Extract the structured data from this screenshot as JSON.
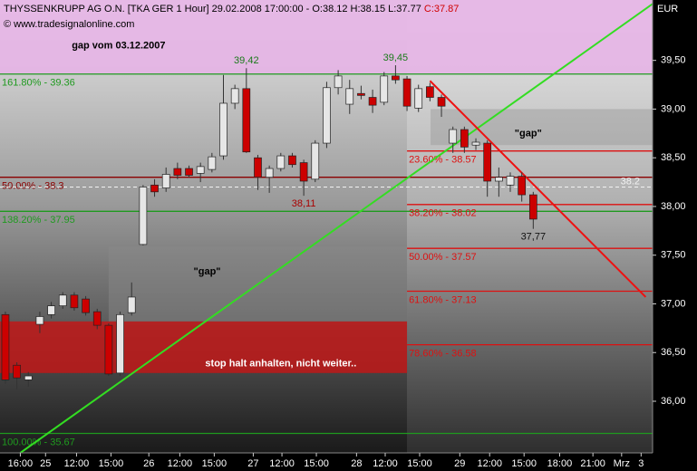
{
  "chart_data": {
    "type": "candlestick",
    "title": "THYSSENKRUPP AG O.N. [TKA GER  1 Hour] 29.02.2008 17:00:00 - O:38.12 H:38.15 L:37.77",
    "close_label": "C:37.87",
    "subtitle": "© www.tradesignalonline.com",
    "y_axis_label": "EUR",
    "ylim": [
      35.47,
      40.12
    ],
    "yticks": [
      {
        "value": 39.5,
        "label": "39,50"
      },
      {
        "value": 39.0,
        "label": "39,00"
      },
      {
        "value": 38.5,
        "label": "38,50"
      },
      {
        "value": 38.0,
        "label": "38,00"
      },
      {
        "value": 37.5,
        "label": "37,50"
      },
      {
        "value": 37.0,
        "label": "37,00"
      },
      {
        "value": 36.5,
        "label": "36,50"
      },
      {
        "value": 36.0,
        "label": "36,00"
      }
    ],
    "xlim": [
      -0.47,
      56.4
    ],
    "xticks": [
      {
        "value": 1.3,
        "label": "16:00"
      },
      {
        "value": 3.5,
        "label": "25"
      },
      {
        "value": 6.2,
        "label": "12:00"
      },
      {
        "value": 9.2,
        "label": "15:00"
      },
      {
        "value": 12.5,
        "label": "26"
      },
      {
        "value": 15.2,
        "label": "12:00"
      },
      {
        "value": 18.2,
        "label": "15:00"
      },
      {
        "value": 21.6,
        "label": "27"
      },
      {
        "value": 24.1,
        "label": "12:00"
      },
      {
        "value": 27.1,
        "label": "15:00"
      },
      {
        "value": 30.6,
        "label": "28"
      },
      {
        "value": 33.1,
        "label": "12:00"
      },
      {
        "value": 36.1,
        "label": "15:00"
      },
      {
        "value": 39.6,
        "label": "29"
      },
      {
        "value": 42.2,
        "label": "12:00"
      },
      {
        "value": 45.2,
        "label": "15:00"
      },
      {
        "value": 48.3,
        "label": "18:00"
      },
      {
        "value": 51.2,
        "label": "21:00"
      },
      {
        "value": 53.7,
        "label": "Mrz"
      },
      {
        "value": 55.4,
        "label": "3"
      }
    ],
    "candles": {
      "up_color": "#e6e6e6",
      "down_color": "#cc0000",
      "open": [
        36.89,
        36.37,
        36.22,
        36.79,
        36.89,
        36.98,
        37.09,
        37.05,
        36.92,
        36.78,
        36.29,
        36.91,
        37.61,
        38.22,
        38.19,
        38.39,
        38.39,
        38.34,
        38.38,
        38.52,
        39.06,
        39.21,
        38.5,
        38.3,
        38.39,
        38.52,
        38.45,
        38.28,
        38.65,
        39.22,
        39.05,
        39.16,
        39.12,
        39.07,
        39.34,
        39.31,
        39.01,
        39.23,
        39.12,
        38.65,
        38.79,
        38.63,
        38.65,
        38.26,
        38.22,
        38.31,
        38.12
      ],
      "high": [
        36.92,
        36.4,
        36.3,
        36.92,
        37.02,
        37.12,
        37.12,
        37.08,
        36.95,
        36.8,
        36.92,
        37.22,
        38.22,
        38.28,
        38.4,
        38.45,
        38.42,
        38.45,
        38.55,
        39.35,
        39.25,
        39.42,
        38.53,
        38.42,
        38.55,
        38.55,
        38.48,
        38.68,
        39.28,
        39.4,
        39.3,
        39.24,
        39.2,
        39.38,
        39.45,
        39.34,
        39.25,
        39.27,
        39.15,
        38.82,
        38.82,
        38.7,
        38.68,
        38.4,
        38.35,
        38.35,
        38.15
      ],
      "low": [
        36.18,
        36.12,
        36.15,
        36.7,
        36.85,
        36.95,
        36.93,
        36.88,
        36.74,
        36.26,
        36.26,
        36.88,
        37.6,
        38.1,
        38.15,
        38.28,
        38.3,
        38.25,
        38.35,
        38.48,
        39.0,
        38.55,
        38.17,
        38.14,
        38.36,
        38.4,
        38.11,
        38.25,
        38.6,
        39.15,
        38.95,
        39.1,
        38.96,
        39.04,
        39.26,
        38.98,
        38.97,
        39.08,
        38.92,
        38.55,
        38.55,
        38.58,
        38.1,
        38.1,
        38.15,
        38.05,
        37.77
      ],
      "close": [
        36.22,
        36.24,
        36.26,
        36.87,
        36.98,
        37.09,
        36.96,
        36.91,
        36.78,
        36.28,
        36.89,
        37.07,
        38.2,
        38.15,
        38.33,
        38.32,
        38.32,
        38.41,
        38.51,
        39.06,
        39.21,
        38.56,
        38.3,
        38.39,
        38.52,
        38.43,
        38.26,
        38.65,
        39.22,
        39.34,
        39.21,
        39.14,
        39.04,
        39.34,
        39.3,
        39.03,
        39.21,
        39.12,
        39.03,
        38.79,
        38.61,
        38.66,
        38.26,
        38.3,
        38.31,
        38.12,
        37.87
      ],
      "high_labels": [
        null,
        null,
        null,
        null,
        null,
        null,
        null,
        null,
        null,
        null,
        null,
        null,
        null,
        null,
        null,
        null,
        null,
        null,
        null,
        null,
        null,
        "39,42",
        null,
        null,
        null,
        null,
        null,
        null,
        null,
        null,
        null,
        null,
        null,
        null,
        "39,45",
        null,
        null,
        null,
        null,
        null,
        null,
        null,
        null,
        null,
        null,
        null,
        null
      ],
      "low_labels": [
        null,
        null,
        null,
        null,
        null,
        null,
        null,
        null,
        null,
        null,
        null,
        null,
        null,
        null,
        null,
        null,
        null,
        null,
        null,
        null,
        null,
        null,
        null,
        null,
        null,
        null,
        "38,11",
        null,
        null,
        null,
        null,
        null,
        null,
        null,
        null,
        null,
        null,
        null,
        null,
        null,
        null,
        null,
        null,
        null,
        null,
        null,
        "37,77"
      ],
      "high_label_color": "#1a7a1a",
      "low_label_color": "#aa0000"
    },
    "zones": [
      {
        "text": "gap vom 03.12.2007",
        "x": [
          -0.47,
          56.4
        ],
        "y": [
          39.36,
          40.12
        ],
        "color": "#e6b4e6",
        "text_color": "#000000"
      },
      {
        "text": "stop halt anhalten, nicht weiter..",
        "x": [
          -0.47,
          35.0
        ],
        "y": [
          36.29,
          36.82
        ],
        "color": "#c01818",
        "text_color": "#ffffff"
      },
      {
        "text": "\"gap\"",
        "x": [
          9.0,
          35.0
        ],
        "y": [
          36.82,
          37.59
        ],
        "color": "#8a8a8a",
        "text_color": "#000000"
      },
      {
        "text": "\"gap\"",
        "x": [
          37.05,
          56.4
        ],
        "y": [
          38.63,
          39.0
        ],
        "color": "#9a9a9a",
        "text_color": "#000000"
      }
    ],
    "levels": [
      {
        "value": 39.36,
        "label": "161.80% - 39.36",
        "color": "#1f9a1f",
        "start": -0.47
      },
      {
        "value": 38.3,
        "label": "50.00% - 38.3",
        "color": "#8b0000",
        "start": -0.47
      },
      {
        "value": 37.95,
        "label": "138.20% - 37.95",
        "color": "#1f9a1f",
        "start": -0.47
      },
      {
        "value": 35.67,
        "label": "100.00% - 35.67",
        "color": "#1f9a1f",
        "start": -0.47
      },
      {
        "value": 38.57,
        "label": "23.60% - 38.57",
        "color": "#dd1111",
        "start": 35.0
      },
      {
        "value": 38.02,
        "label": "38.20% - 38.02",
        "color": "#dd1111",
        "start": 35.0
      },
      {
        "value": 37.57,
        "label": "50.00% - 37.57",
        "color": "#dd1111",
        "start": 35.0
      },
      {
        "value": 37.13,
        "label": "61.80% - 37.13",
        "color": "#dd1111",
        "start": 35.0
      },
      {
        "value": 36.58,
        "label": "78.60% - 36.58",
        "color": "#dd1111",
        "start": 35.0
      }
    ],
    "current_price": {
      "value": 38.2,
      "label": "38.2",
      "color": "#f2f2f2"
    },
    "trendlines": [
      {
        "color": "#33dd22",
        "x": [
          1.3,
          56.4
        ],
        "y": [
          35.47,
          40.08
        ]
      },
      {
        "color": "#ee1111",
        "x": [
          37.0,
          55.8
        ],
        "y": [
          39.29,
          37.07
        ]
      }
    ]
  }
}
